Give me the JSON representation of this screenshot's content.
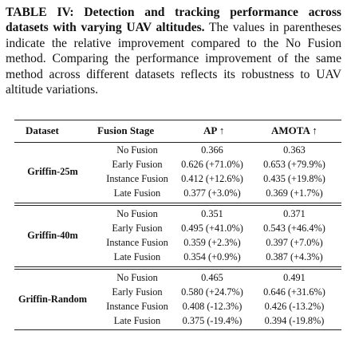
{
  "caption": {
    "label": "TABLE IV:",
    "bold_text": "Detection and tracking performance across datasets with varying UAV altitudes.",
    "body_text": "The values in parentheses indicate the relative improvement compared to the No Fusion method. Comparing the performance improvement of the same method across different datasets reflects its robustness to UAV altitude variations."
  },
  "table": {
    "headers": {
      "dataset": "Dataset",
      "fusion_stage": "Fusion Stage",
      "ap": "AP ↑",
      "amota": "AMOTA ↑"
    },
    "groups": [
      {
        "dataset": "Griffin-25m",
        "rows": [
          {
            "stage": "No Fusion",
            "ap": "0.366",
            "amota": "0.363"
          },
          {
            "stage": "Early Fusion",
            "ap": "0.626 (+71.0%)",
            "amota": "0.653 (+79.9%)"
          },
          {
            "stage": "Instance Fusion",
            "ap": "0.412 (+12.6%)",
            "amota": "0.435 (+19.8%)"
          },
          {
            "stage": "Late Fusion",
            "ap": "0.377 (+3.0%)",
            "amota": "0.369 (+1.7%)"
          }
        ]
      },
      {
        "dataset": "Griffin-40m",
        "rows": [
          {
            "stage": "No Fusion",
            "ap": "0.351",
            "amota": "0.371"
          },
          {
            "stage": "Early Fusion",
            "ap": "0.495 (+41.0%)",
            "amota": "0.543 (+46.4%)"
          },
          {
            "stage": "Instance Fusion",
            "ap": "0.359 (+2.3%)",
            "amota": "0.397 (+7.0%)"
          },
          {
            "stage": "Late Fusion",
            "ap": "0.354 (+0.9%)",
            "amota": "0.387 (+4.3%)"
          }
        ]
      },
      {
        "dataset": "Griffin-Random",
        "rows": [
          {
            "stage": "No Fusion",
            "ap": "0.465",
            "amota": "0.491"
          },
          {
            "stage": "Early Fusion",
            "ap": "0.580 (+24.7%)",
            "amota": "0.646 (+31.6%)"
          },
          {
            "stage": "Instance Fusion",
            "ap": "0.408 (-12.3%)",
            "amota": "0.426 (-13.2%)"
          },
          {
            "stage": "Late Fusion",
            "ap": "0.375 (-19.4%)",
            "amota": "0.394 (-19.8%)"
          }
        ]
      }
    ]
  }
}
